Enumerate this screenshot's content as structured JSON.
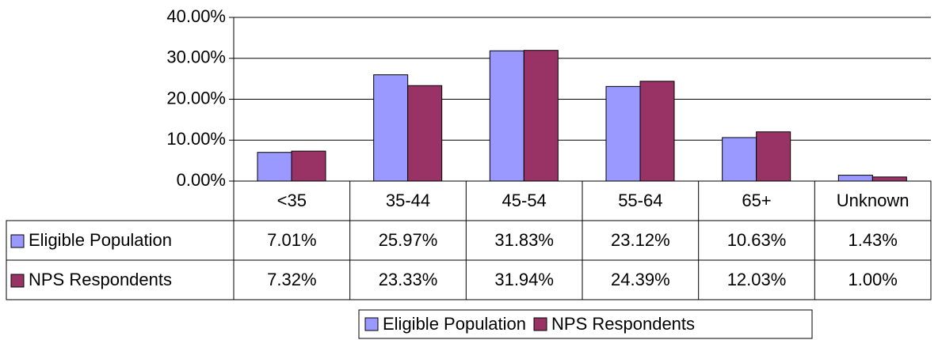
{
  "chart_data": {
    "type": "bar",
    "categories": [
      "<35",
      "35-44",
      "45-54",
      "55-64",
      "65+",
      "Unknown"
    ],
    "series": [
      {
        "name": "Eligible Population",
        "color": "#9999ff",
        "values": [
          7.01,
          25.97,
          31.83,
          23.12,
          10.63,
          1.43
        ],
        "value_labels": [
          "7.01%",
          "25.97%",
          "31.83%",
          "23.12%",
          "10.63%",
          "1.43%"
        ]
      },
      {
        "name": "NPS Respondents",
        "color": "#993366",
        "values": [
          7.32,
          23.33,
          31.94,
          24.39,
          12.03,
          1.0
        ],
        "value_labels": [
          "7.32%",
          "23.33%",
          "31.94%",
          "24.39%",
          "12.03%",
          "1.00%"
        ]
      }
    ],
    "ylim": [
      0,
      40
    ],
    "yticks": [
      {
        "value": 0,
        "label": "0.00%"
      },
      {
        "value": 10,
        "label": "10.00%"
      },
      {
        "value": 20,
        "label": "20.00%"
      },
      {
        "value": 30,
        "label": "30.00%"
      },
      {
        "value": 40,
        "label": "40.00%"
      }
    ],
    "grid": true,
    "legend": "bottom"
  }
}
